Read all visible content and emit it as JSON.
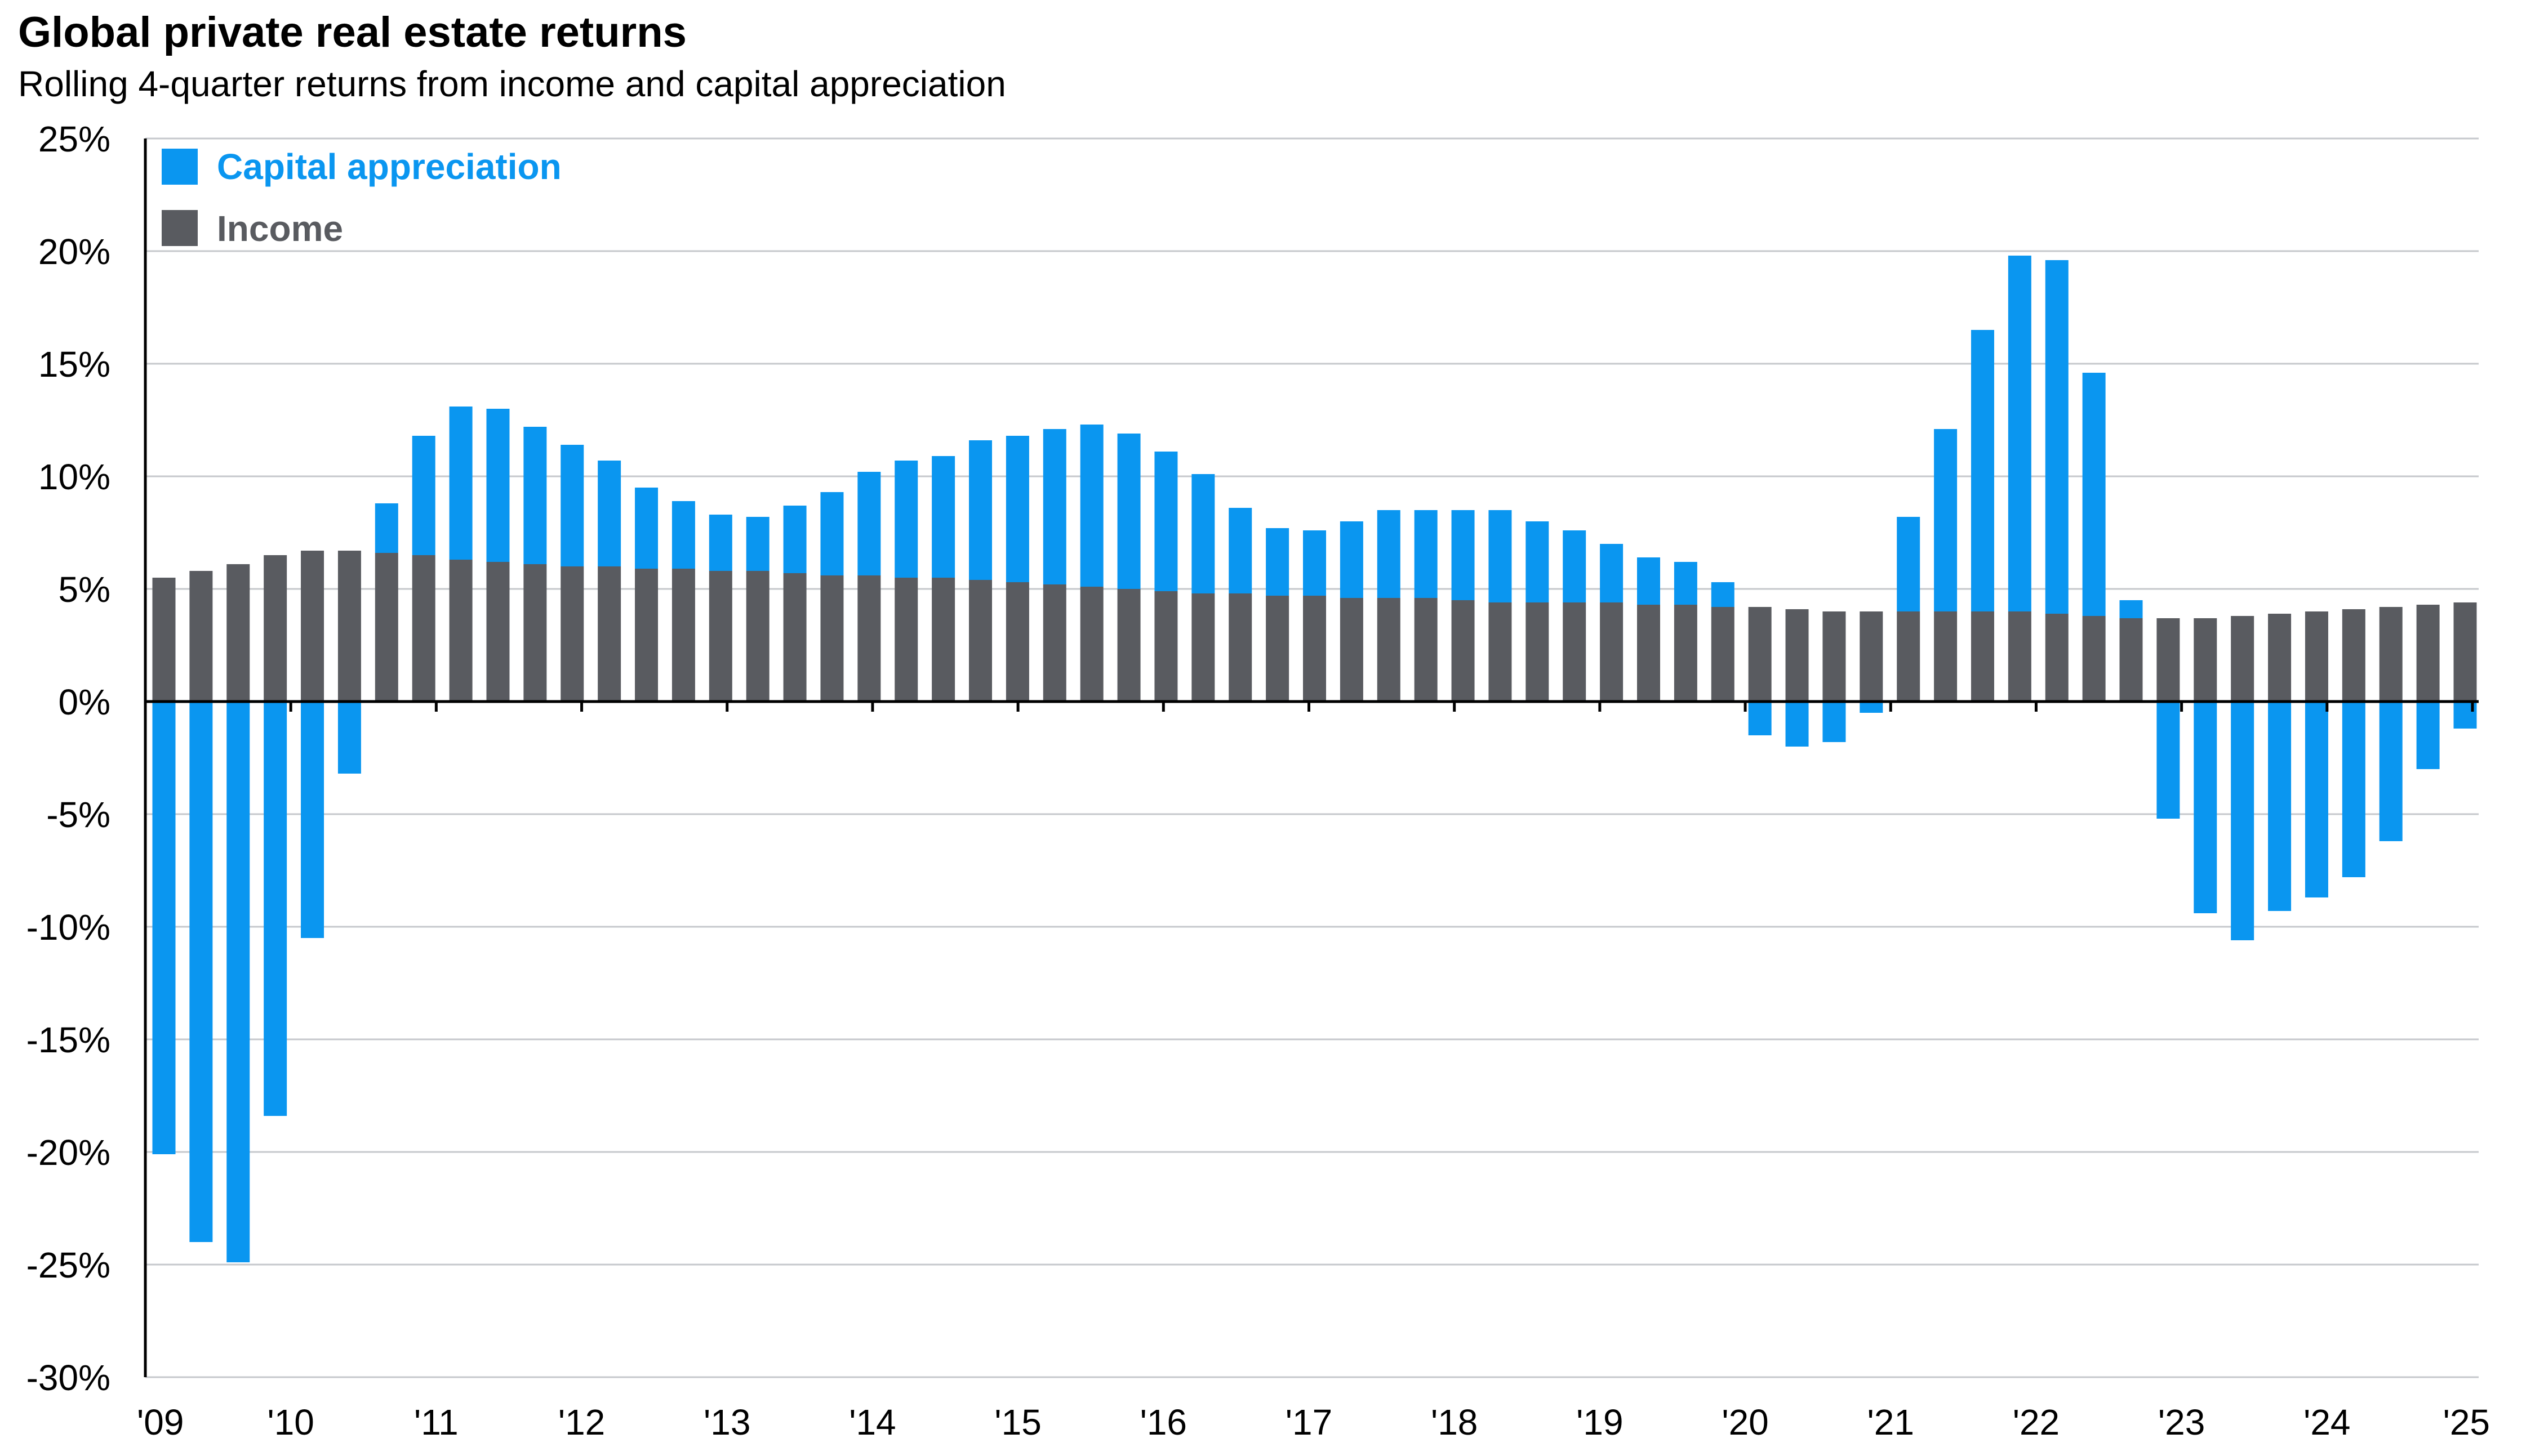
{
  "chart_data": {
    "type": "bar",
    "stacked": true,
    "title": "Global private real estate returns",
    "subtitle": "Rolling 4-quarter returns from income and capital appreciation",
    "xlabel": "",
    "ylabel": "",
    "ylim": [
      -30,
      25
    ],
    "yticks": [
      25,
      20,
      15,
      10,
      5,
      0,
      -5,
      -10,
      -15,
      -20,
      -25,
      -30
    ],
    "ytick_labels": [
      "25%",
      "20%",
      "15%",
      "10%",
      "5%",
      "0%",
      "-5%",
      "-10%",
      "-15%",
      "-20%",
      "-25%",
      "-30%"
    ],
    "xtick_labels": [
      "'09",
      "'10",
      "'11",
      "'12",
      "'13",
      "'14",
      "'15",
      "'16",
      "'17",
      "'18",
      "'19",
      "'20",
      "'21",
      "'22",
      "'23",
      "'24",
      "'25"
    ],
    "grid": true,
    "legend_position": "top-left",
    "series": [
      {
        "name": "Capital appreciation",
        "color": "#0a96f0",
        "values": [
          -20.1,
          -24.0,
          -24.9,
          -18.4,
          -10.5,
          -3.2,
          2.2,
          5.3,
          6.8,
          6.8,
          6.1,
          5.4,
          4.7,
          3.6,
          3.0,
          2.5,
          2.4,
          3.0,
          3.7,
          4.6,
          5.2,
          5.4,
          6.2,
          6.5,
          6.9,
          7.2,
          6.9,
          6.2,
          5.3,
          3.8,
          3.0,
          2.9,
          3.4,
          3.9,
          3.9,
          4.0,
          4.1,
          3.6,
          3.2,
          2.6,
          2.1,
          1.9,
          1.1,
          -1.5,
          -2.0,
          -1.8,
          -0.5,
          4.2,
          8.1,
          12.5,
          15.8,
          15.7,
          10.8,
          0.8,
          -5.2,
          -9.4,
          -10.6,
          -9.3,
          -8.7,
          -7.8,
          -6.2,
          -3.0,
          -1.2
        ]
      },
      {
        "name": "Income",
        "color": "#595b60",
        "values": [
          5.5,
          5.8,
          6.1,
          6.5,
          6.7,
          6.7,
          6.6,
          6.5,
          6.3,
          6.2,
          6.1,
          6.0,
          6.0,
          5.9,
          5.9,
          5.8,
          5.8,
          5.7,
          5.6,
          5.6,
          5.5,
          5.5,
          5.4,
          5.3,
          5.2,
          5.1,
          5.0,
          4.9,
          4.8,
          4.8,
          4.7,
          4.7,
          4.6,
          4.6,
          4.6,
          4.5,
          4.4,
          4.4,
          4.4,
          4.4,
          4.3,
          4.3,
          4.2,
          4.2,
          4.1,
          4.0,
          4.0,
          4.0,
          4.0,
          4.0,
          4.0,
          3.9,
          3.8,
          3.7,
          3.7,
          3.7,
          3.8,
          3.9,
          4.0,
          4.1,
          4.2,
          4.3,
          4.4
        ]
      }
    ]
  }
}
